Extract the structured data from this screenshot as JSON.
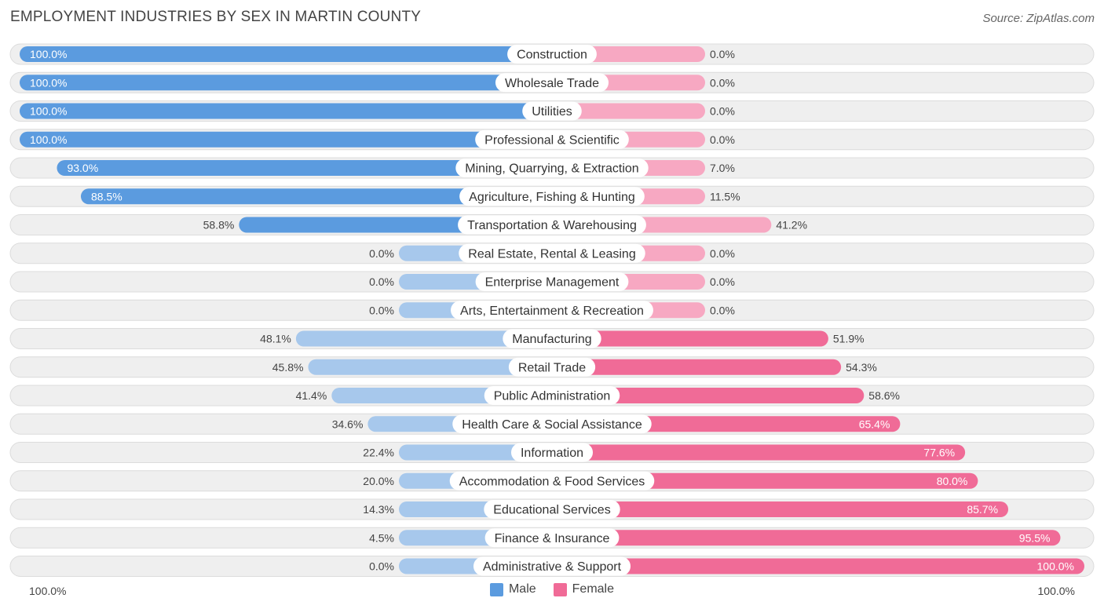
{
  "title": "EMPLOYMENT INDUSTRIES BY SEX IN MARTIN COUNTY",
  "source": "Source: ZipAtlas.com",
  "colors": {
    "male_strong": "#5b9bdf",
    "male_light": "#a7c8ec",
    "female_strong": "#f06b97",
    "female_light": "#f7a8c2",
    "row_bg": "#efefef"
  },
  "legend": {
    "male": "Male",
    "female": "Female"
  },
  "axis": {
    "left": "100.0%",
    "right": "100.0%"
  },
  "chart_data": {
    "type": "bar",
    "orientation": "horizontal-diverging",
    "title": "EMPLOYMENT INDUSTRIES BY SEX IN MARTIN COUNTY",
    "xlim": [
      -100,
      100
    ],
    "categories": [
      "Construction",
      "Wholesale Trade",
      "Utilities",
      "Professional & Scientific",
      "Mining, Quarrying, & Extraction",
      "Agriculture, Fishing & Hunting",
      "Transportation & Warehousing",
      "Real Estate, Rental & Leasing",
      "Enterprise Management",
      "Arts, Entertainment & Recreation",
      "Manufacturing",
      "Retail Trade",
      "Public Administration",
      "Health Care & Social Assistance",
      "Information",
      "Accommodation & Food Services",
      "Educational Services",
      "Finance & Insurance",
      "Administrative & Support"
    ],
    "series": [
      {
        "name": "Male",
        "values": [
          100.0,
          100.0,
          100.0,
          100.0,
          93.0,
          88.5,
          58.8,
          0.0,
          0.0,
          0.0,
          48.1,
          45.8,
          41.4,
          34.6,
          22.4,
          20.0,
          14.3,
          4.5,
          0.0
        ],
        "labels": [
          "100.0%",
          "100.0%",
          "100.0%",
          "100.0%",
          "93.0%",
          "88.5%",
          "58.8%",
          "0.0%",
          "0.0%",
          "0.0%",
          "48.1%",
          "45.8%",
          "41.4%",
          "34.6%",
          "22.4%",
          "20.0%",
          "14.3%",
          "4.5%",
          "0.0%"
        ]
      },
      {
        "name": "Female",
        "values": [
          0.0,
          0.0,
          0.0,
          0.0,
          7.0,
          11.5,
          41.2,
          0.0,
          0.0,
          0.0,
          51.9,
          54.3,
          58.6,
          65.4,
          77.6,
          80.0,
          85.7,
          95.5,
          100.0
        ],
        "labels": [
          "0.0%",
          "0.0%",
          "0.0%",
          "0.0%",
          "7.0%",
          "11.5%",
          "41.2%",
          "0.0%",
          "0.0%",
          "0.0%",
          "51.9%",
          "54.3%",
          "58.6%",
          "65.4%",
          "77.6%",
          "80.0%",
          "85.7%",
          "95.5%",
          "100.0%"
        ]
      }
    ],
    "legend": [
      "Male",
      "Female"
    ],
    "legend_position": "bottom-center"
  }
}
